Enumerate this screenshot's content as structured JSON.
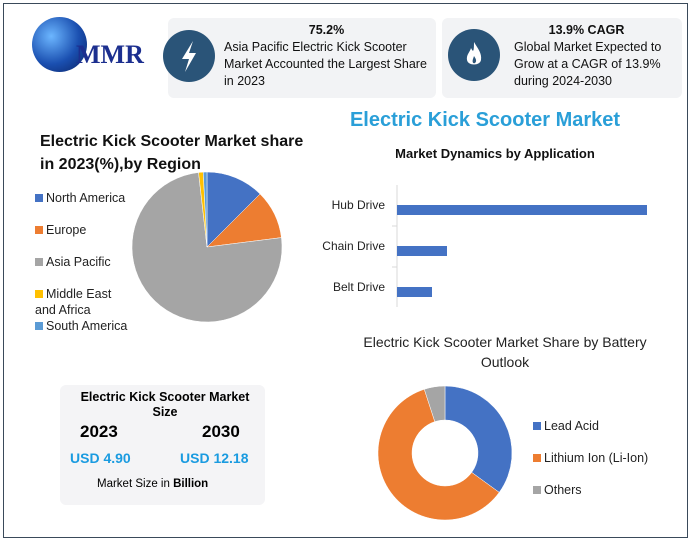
{
  "logo": {
    "text": "MMR"
  },
  "stats": [
    {
      "value": "75.2%",
      "text": "Asia Pacific Electric Kick Scooter Market Accounted the Largest Share in 2023",
      "icon": "lightning-bolt-icon"
    },
    {
      "value": "13.9% CAGR",
      "text": "Global Market  Expected to Grow at a CAGR of 13.9% during 2024-2030",
      "icon": "flame-icon"
    }
  ],
  "main_title": "Electric Kick Scooter Market",
  "size_box": {
    "title": "Electric Kick Scooter Market Size",
    "years": [
      "2023",
      "2030"
    ],
    "values": [
      "USD 4.90",
      "USD 12.18"
    ],
    "note_prefix": "Market Size in ",
    "note_bold": "Billion",
    "value_color": "#1a9be0"
  },
  "chart_data": [
    {
      "type": "pie",
      "title": "Electric Kick Scooter Market share in 2023(%),by Region",
      "legend_placement": "left",
      "labels": [
        "North America",
        "Europe",
        "Asia Pacific",
        "Middle East and Africa",
        "South America"
      ],
      "values": [
        12.5,
        10.5,
        75.2,
        1.0,
        0.8
      ],
      "colors": [
        "#4472c4",
        "#ed7d31",
        "#a5a5a5",
        "#ffc000",
        "#5b9bd5"
      ]
    },
    {
      "type": "bar",
      "orientation": "horizontal",
      "title": "Market Dynamics by Application",
      "categories": [
        "Hub Drive",
        "Chain Drive",
        "Belt Drive"
      ],
      "values": [
        100,
        20,
        14
      ],
      "color": "#4472c4",
      "grid": false
    },
    {
      "type": "pie",
      "subtype": "donut",
      "title": "Electric Kick Scooter Market Share by Battery Outlook",
      "legend_placement": "right",
      "labels": [
        "Lead Acid",
        "Lithium Ion (Li-Ion)",
        "Others"
      ],
      "values": [
        35,
        60,
        5
      ],
      "colors": [
        "#4472c4",
        "#ed7d31",
        "#a5a5a5"
      ]
    }
  ]
}
